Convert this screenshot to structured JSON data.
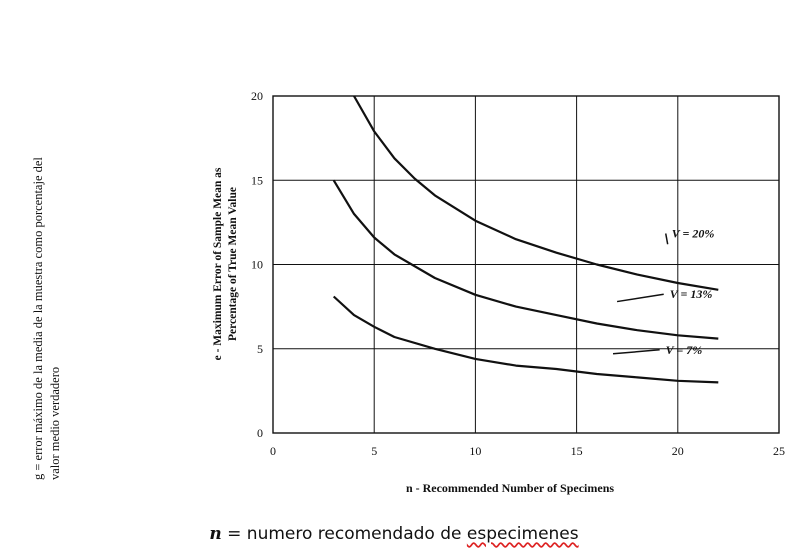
{
  "side_note": {
    "line1": "g = error máximo de la media de la muestra como porcentaje del",
    "line2": "valor medio verdadero"
  },
  "caption": {
    "var": "n",
    "text": "= numero recomendado de",
    "last_word": "especimenes"
  },
  "chart_data": {
    "type": "line",
    "xlabel": "n - Recommended Number of Specimens",
    "ylabel_line1": "e - Maximum Error of Sample Mean as",
    "ylabel_line2": "Percentage of True Mean Value",
    "xlim": [
      0,
      25
    ],
    "ylim": [
      0,
      20
    ],
    "xticks": [
      0,
      5,
      10,
      15,
      20,
      25
    ],
    "yticks": [
      0,
      5,
      10,
      15,
      20
    ],
    "grid": true,
    "series": [
      {
        "name": "V = 20%",
        "x": [
          4,
          5,
          6,
          7,
          8,
          10,
          12,
          14,
          16,
          18,
          20,
          22
        ],
        "y": [
          20.0,
          17.9,
          16.3,
          15.1,
          14.1,
          12.6,
          11.5,
          10.7,
          10.0,
          9.4,
          8.9,
          8.5
        ]
      },
      {
        "name": "V = 13%",
        "x": [
          3,
          4,
          5,
          6,
          8,
          10,
          12,
          14,
          16,
          18,
          20,
          22
        ],
        "y": [
          15.0,
          13.0,
          11.6,
          10.6,
          9.2,
          8.2,
          7.5,
          7.0,
          6.5,
          6.1,
          5.8,
          5.6
        ]
      },
      {
        "name": "V = 7%",
        "x": [
          3,
          4,
          5,
          6,
          8,
          10,
          12,
          14,
          16,
          18,
          20,
          22
        ],
        "y": [
          8.1,
          7.0,
          6.3,
          5.7,
          5.0,
          4.4,
          4.0,
          3.8,
          3.5,
          3.3,
          3.1,
          3.0
        ]
      }
    ]
  }
}
